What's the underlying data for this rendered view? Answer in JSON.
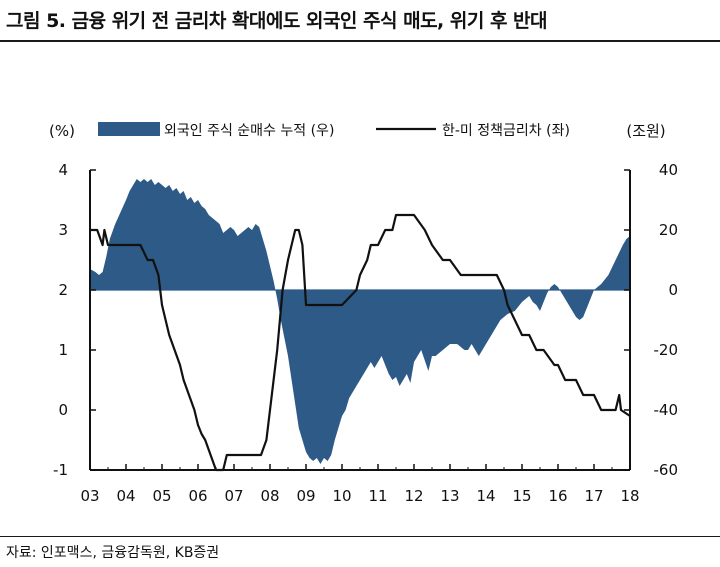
{
  "figure": {
    "title": "그림 5. 금융 위기 전 금리차 확대에도 외국인 주식 매도, 위기 후 반대",
    "source": "자료: 인포맥스, 금융감독원, KB증권"
  },
  "chart_data": {
    "type": "area+line",
    "title": "그림 5. 금융 위기 전 금리차 확대에도 외국인 주식 매도, 위기 후 반대",
    "left_axis": {
      "unit": "(%)",
      "ylim": [
        -1,
        4
      ],
      "ticks": [
        "4",
        "3",
        "2",
        "1",
        "0",
        "-1"
      ]
    },
    "right_axis": {
      "unit": "(조원)",
      "ylim": [
        -60,
        40
      ],
      "ticks": [
        "40",
        "20",
        "0",
        "-20",
        "-40",
        "-60"
      ]
    },
    "x_ticks": [
      "03",
      "04",
      "05",
      "06",
      "07",
      "08",
      "09",
      "10",
      "11",
      "12",
      "13",
      "14",
      "15",
      "16",
      "17",
      "18"
    ],
    "xlim": [
      2003,
      2018
    ],
    "legend": {
      "placement": "top",
      "area_label": "외국인 주식 순매수 누적 (우)",
      "line_label": "한-미 정책금리차 (좌)"
    },
    "colors": {
      "area": "#2e5a87",
      "line": "#111111"
    },
    "series": [
      {
        "name": "외국인 주식 순매수 누적 (우)",
        "axis": "right",
        "kind": "area",
        "x": [
          2003.0,
          2003.15,
          2003.25,
          2003.35,
          2003.45,
          2003.55,
          2003.7,
          2003.85,
          2004.0,
          2004.1,
          2004.2,
          2004.3,
          2004.4,
          2004.5,
          2004.6,
          2004.7,
          2004.8,
          2004.9,
          2005.0,
          2005.1,
          2005.2,
          2005.3,
          2005.4,
          2005.5,
          2005.6,
          2005.7,
          2005.8,
          2005.9,
          2006.0,
          2006.1,
          2006.2,
          2006.3,
          2006.4,
          2006.5,
          2006.6,
          2006.7,
          2006.8,
          2006.9,
          2007.0,
          2007.1,
          2007.2,
          2007.3,
          2007.4,
          2007.5,
          2007.6,
          2007.7,
          2007.8,
          2007.9,
          2008.0,
          2008.1,
          2008.2,
          2008.3,
          2008.4,
          2008.5,
          2008.6,
          2008.7,
          2008.8,
          2008.9,
          2009.0,
          2009.1,
          2009.2,
          2009.3,
          2009.4,
          2009.5,
          2009.6,
          2009.7,
          2009.8,
          2009.9,
          2010.0,
          2010.1,
          2010.2,
          2010.3,
          2010.4,
          2010.5,
          2010.6,
          2010.7,
          2010.8,
          2010.9,
          2011.0,
          2011.1,
          2011.2,
          2011.3,
          2011.4,
          2011.5,
          2011.6,
          2011.7,
          2011.8,
          2011.9,
          2012.0,
          2012.2,
          2012.4,
          2012.5,
          2012.6,
          2012.8,
          2013.0,
          2013.2,
          2013.4,
          2013.5,
          2013.6,
          2013.8,
          2014.0,
          2014.2,
          2014.4,
          2014.6,
          2014.8,
          2015.0,
          2015.1,
          2015.2,
          2015.3,
          2015.4,
          2015.5,
          2015.6,
          2015.7,
          2015.8,
          2015.9,
          2016.0,
          2016.1,
          2016.2,
          2016.3,
          2016.4,
          2016.5,
          2016.6,
          2016.7,
          2016.8,
          2016.9,
          2017.0,
          2017.2,
          2017.4,
          2017.6,
          2017.8,
          2017.9,
          2018.0
        ],
        "values": [
          7,
          6,
          5,
          6,
          11,
          17,
          22,
          26,
          30,
          33,
          35,
          37,
          36,
          37,
          36,
          37,
          35,
          36,
          35,
          34,
          35,
          33,
          34,
          32,
          33,
          30,
          31,
          29,
          30,
          28,
          27,
          25,
          24,
          23,
          22,
          19,
          20,
          21,
          20,
          18,
          19,
          20,
          21,
          20,
          22,
          21,
          17,
          13,
          8,
          3,
          -3,
          -10,
          -16,
          -22,
          -30,
          -38,
          -46,
          -50,
          -54,
          -56,
          -57,
          -56,
          -58,
          -56,
          -57,
          -55,
          -50,
          -46,
          -42,
          -40,
          -36,
          -34,
          -32,
          -30,
          -28,
          -26,
          -24,
          -26,
          -24,
          -22,
          -25,
          -28,
          -30,
          -29,
          -32,
          -30,
          -28,
          -31,
          -24,
          -20,
          -27,
          -22,
          -22,
          -20,
          -18,
          -18,
          -20,
          -20,
          -18,
          -22,
          -18,
          -14,
          -10,
          -8,
          -7,
          -4,
          -3,
          -2,
          -4,
          -5,
          -7,
          -4,
          -1,
          1,
          2,
          1,
          -1,
          -3,
          -5,
          -7,
          -9,
          -10,
          -9,
          -6,
          -3,
          0,
          2,
          5,
          10,
          15,
          17,
          18
        ]
      },
      {
        "name": "한-미 정책금리차 (좌)",
        "axis": "left",
        "kind": "line",
        "x": [
          2003.0,
          2003.2,
          2003.35,
          2003.4,
          2003.5,
          2003.6,
          2003.65,
          2004.0,
          2004.2,
          2004.4,
          2004.6,
          2004.75,
          2004.9,
          2004.95,
          2005.0,
          2005.1,
          2005.2,
          2005.35,
          2005.5,
          2005.6,
          2005.75,
          2005.9,
          2006.0,
          2006.1,
          2006.2,
          2006.35,
          2006.5,
          2006.7,
          2006.8,
          2007.0,
          2007.2,
          2007.4,
          2007.6,
          2007.75,
          2007.9,
          2008.0,
          2008.1,
          2008.2,
          2008.35,
          2008.5,
          2008.6,
          2008.7,
          2008.8,
          2008.9,
          2009.0,
          2009.5,
          2010.0,
          2010.4,
          2010.5,
          2010.7,
          2010.8,
          2011.0,
          2011.2,
          2011.4,
          2011.5,
          2012.0,
          2012.3,
          2012.5,
          2012.8,
          2013.0,
          2013.3,
          2013.5,
          2014.0,
          2014.3,
          2014.5,
          2014.6,
          2014.8,
          2015.0,
          2015.2,
          2015.4,
          2015.6,
          2015.9,
          2016.0,
          2016.2,
          2016.5,
          2016.7,
          2017.0,
          2017.2,
          2017.5,
          2017.6,
          2017.7,
          2017.75,
          2018.0
        ],
        "values": [
          3.0,
          3.0,
          2.75,
          3.0,
          2.75,
          2.75,
          2.75,
          2.75,
          2.75,
          2.75,
          2.5,
          2.5,
          2.25,
          2.0,
          1.75,
          1.5,
          1.25,
          1.0,
          0.75,
          0.5,
          0.25,
          0.0,
          -0.25,
          -0.4,
          -0.5,
          -0.75,
          -1.0,
          -1.0,
          -0.75,
          -0.75,
          -0.75,
          -0.75,
          -0.75,
          -0.75,
          -0.5,
          0.0,
          0.5,
          1.0,
          2.0,
          2.5,
          2.75,
          3.0,
          3.0,
          2.75,
          1.75,
          1.75,
          1.75,
          2.0,
          2.25,
          2.5,
          2.75,
          2.75,
          3.0,
          3.0,
          3.25,
          3.25,
          3.0,
          2.75,
          2.5,
          2.5,
          2.25,
          2.25,
          2.25,
          2.25,
          2.0,
          1.75,
          1.5,
          1.25,
          1.25,
          1.0,
          1.0,
          0.75,
          0.75,
          0.5,
          0.5,
          0.25,
          0.25,
          0.0,
          0.0,
          0.0,
          0.25,
          0.0,
          -0.1
        ]
      }
    ]
  }
}
